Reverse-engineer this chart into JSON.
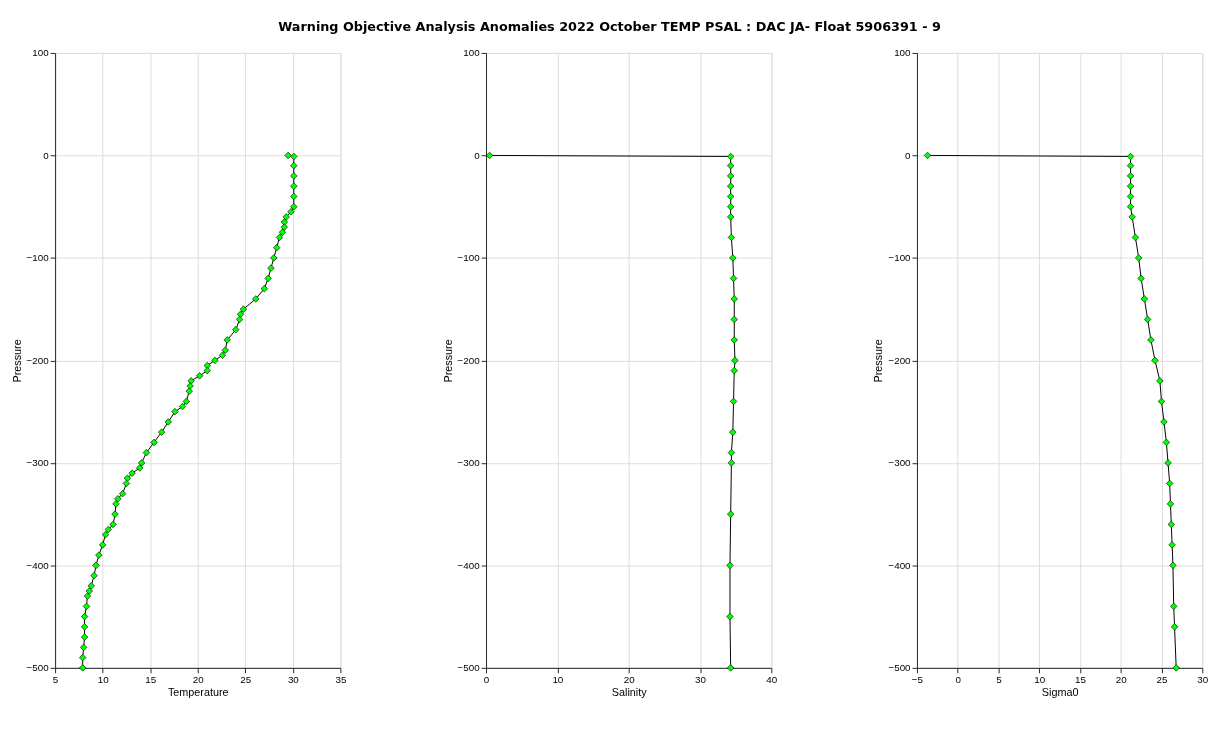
{
  "chart_data": [
    {
      "type": "line",
      "title": "Warning Objective Analysis Anomalies 2022 October TEMP PSAL :  DAC JA- Float 5906391 - 9",
      "xlabel": "Temperature",
      "ylabel": "Pressure",
      "marker": "diamond",
      "grid": true,
      "xlim": [
        5,
        35
      ],
      "xticks": [
        5,
        10,
        15,
        20,
        25,
        30,
        35
      ],
      "ylim": [
        -500,
        100
      ],
      "yticks": [
        -500,
        -400,
        -300,
        -200,
        -100,
        0,
        100
      ],
      "series": [
        {
          "color": "#00ff00",
          "line_style": "solid",
          "x": [
            29.5,
            30.1,
            30.1,
            30.1,
            30.1,
            30.1,
            30.1,
            29.8,
            29.3,
            29.1,
            29.1,
            28.9,
            28.6,
            28.3,
            28.0,
            27.7,
            27.4,
            27.0,
            26.1,
            24.8,
            24.5,
            24.4,
            24.0,
            23.1,
            22.9,
            22.6,
            21.8,
            21.0,
            21.0,
            20.2,
            19.3,
            19.2,
            19.1,
            18.8,
            18.4,
            17.6,
            16.9,
            16.2,
            15.4,
            14.6,
            14.1,
            13.9,
            13.1,
            12.6,
            12.5,
            12.1,
            11.6,
            11.4,
            11.3,
            11.1,
            10.6,
            10.3,
            10.0,
            9.6,
            9.3,
            9.1,
            8.8,
            8.6,
            8.4,
            8.3,
            8.1,
            8.1,
            8.1,
            8.0,
            7.9,
            7.9
          ],
          "values": [
            0,
            -1,
            -10,
            -20,
            -30,
            -40,
            -50,
            -55,
            -60,
            -65,
            -70,
            -75,
            -80,
            -90,
            -100,
            -110,
            -120,
            -130,
            -140,
            -150,
            -155,
            -160,
            -170,
            -180,
            -190,
            -195,
            -200,
            -205,
            -210,
            -215,
            -220,
            -225,
            -230,
            -240,
            -245,
            -250,
            -260,
            -270,
            -280,
            -290,
            -300,
            -305,
            -310,
            -315,
            -320,
            -330,
            -335,
            -340,
            -350,
            -360,
            -365,
            -370,
            -380,
            -390,
            -400,
            -410,
            -420,
            -425,
            -430,
            -440,
            -450,
            -460,
            -470,
            -480,
            -490,
            -500
          ]
        }
      ]
    },
    {
      "type": "line",
      "xlabel": "Salinity",
      "ylabel": "Pressure",
      "marker": "diamond",
      "grid": true,
      "xlim": [
        0,
        40
      ],
      "xticks": [
        0,
        10,
        20,
        30,
        40
      ],
      "ylim": [
        -500,
        100
      ],
      "yticks": [
        -500,
        -400,
        -300,
        -200,
        -100,
        0,
        100
      ],
      "series": [
        {
          "color": "#00ff00",
          "line_style": "solid",
          "x": [
            0.5,
            34.3,
            34.3,
            34.3,
            34.3,
            34.3,
            34.3,
            34.3,
            34.4,
            34.6,
            34.7,
            34.8,
            34.8,
            34.8,
            34.9,
            34.8,
            34.7,
            34.6,
            34.4,
            34.4,
            34.3,
            34.2,
            34.2,
            34.3
          ],
          "values": [
            0,
            -1,
            -10,
            -20,
            -30,
            -40,
            -50,
            -60,
            -80,
            -100,
            -120,
            -140,
            -160,
            -180,
            -200,
            -210,
            -240,
            -270,
            -290,
            -300,
            -350,
            -400,
            -450,
            -500
          ]
        }
      ]
    },
    {
      "type": "line",
      "xlabel": "Sigma0",
      "ylabel": "Pressure",
      "marker": "diamond",
      "grid": true,
      "xlim": [
        -5,
        30
      ],
      "xticks": [
        -5,
        0,
        5,
        10,
        15,
        20,
        25,
        30
      ],
      "ylim": [
        -500,
        100
      ],
      "yticks": [
        -500,
        -400,
        -300,
        -200,
        -100,
        0,
        100
      ],
      "series": [
        {
          "color": "#00ff00",
          "line_style": "solid",
          "x": [
            -3.7,
            21.2,
            21.2,
            21.2,
            21.2,
            21.2,
            21.2,
            21.4,
            21.8,
            22.2,
            22.5,
            22.9,
            23.3,
            23.7,
            24.2,
            24.8,
            25.0,
            25.3,
            25.6,
            25.8,
            26.0,
            26.1,
            26.2,
            26.3,
            26.4,
            26.5,
            26.6,
            26.8
          ],
          "values": [
            0,
            -1,
            -10,
            -20,
            -30,
            -40,
            -50,
            -60,
            -80,
            -100,
            -120,
            -140,
            -160,
            -180,
            -200,
            -220,
            -240,
            -260,
            -280,
            -300,
            -320,
            -340,
            -360,
            -380,
            -400,
            -440,
            -460,
            -500
          ]
        }
      ]
    }
  ]
}
